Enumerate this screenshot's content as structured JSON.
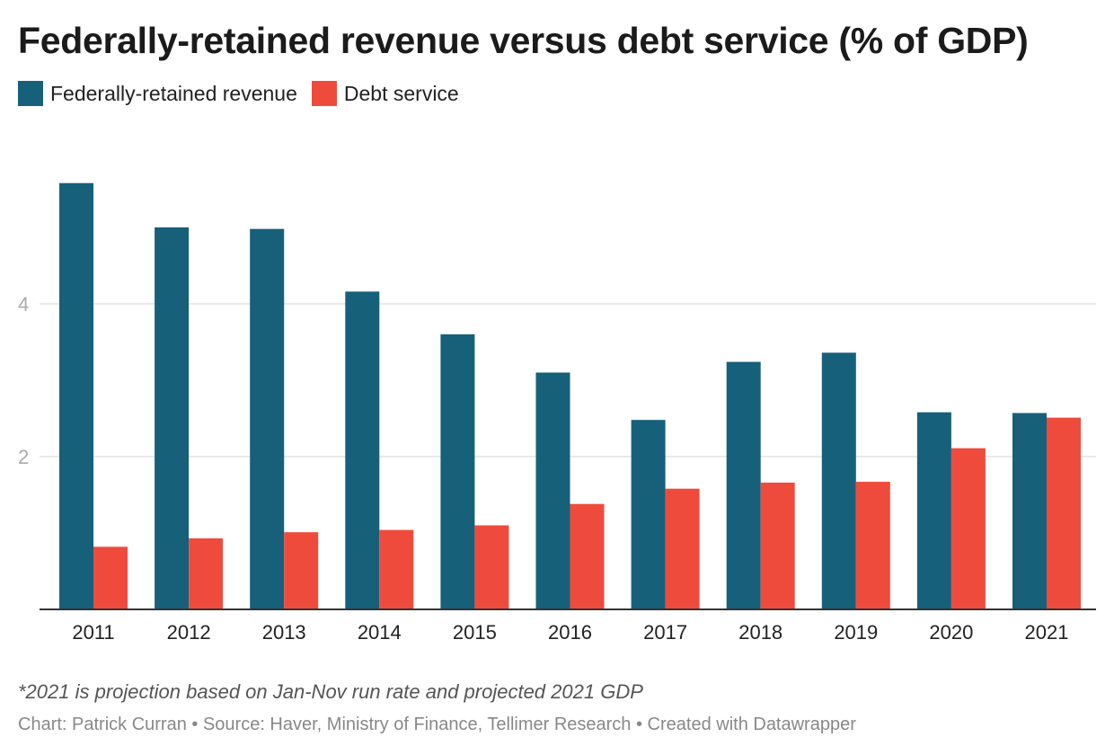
{
  "title": "Federally-retained revenue versus debt service (% of GDP)",
  "legend": [
    {
      "label": "Federally-retained revenue",
      "color": "#16607a"
    },
    {
      "label": "Debt service",
      "color": "#ef4b3d"
    }
  ],
  "footnote": "*2021 is projection based on Jan-Nov run rate and projected 2021 GDP",
  "credits": "Chart: Patrick Curran • Source: Haver, Ministry of Finance, Tellimer Research • Created with Datawrapper",
  "chart_data": {
    "type": "bar",
    "title": "Federally-retained revenue versus debt service (% of GDP)",
    "categories": [
      "2011",
      "2012",
      "2013",
      "2014",
      "2015",
      "2016",
      "2017",
      "2018",
      "2019",
      "2020",
      "2021"
    ],
    "series": [
      {
        "name": "Federally-retained revenue",
        "color": "#16607a",
        "values": [
          5.58,
          5.0,
          4.98,
          4.16,
          3.6,
          3.1,
          2.48,
          3.24,
          3.36,
          2.58,
          2.57
        ]
      },
      {
        "name": "Debt service",
        "color": "#ef4b3d",
        "values": [
          0.82,
          0.93,
          1.01,
          1.04,
          1.1,
          1.38,
          1.58,
          1.66,
          1.67,
          2.11,
          2.51
        ]
      }
    ],
    "yticks": [
      "2",
      "4"
    ],
    "ylim": [
      0,
      6
    ],
    "grid": true,
    "legend_position": "top-left"
  }
}
